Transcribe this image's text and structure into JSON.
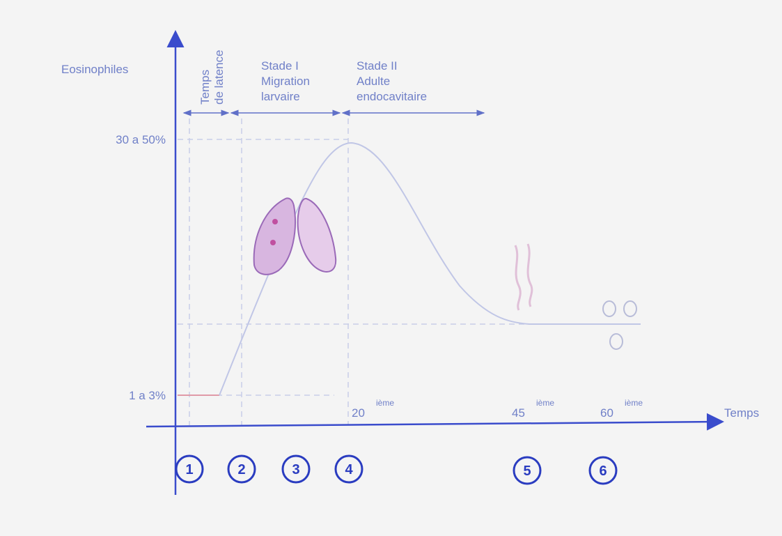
{
  "y_axis_label": "Eosinophiles",
  "x_axis_label": "Temps",
  "phases": [
    {
      "lines": [
        "Temps",
        "de latence"
      ]
    },
    {
      "lines": [
        "Stade I",
        "Migration",
        "larvaire"
      ]
    },
    {
      "lines": [
        "Stade II",
        "Adulte",
        "endocavitaire"
      ]
    }
  ],
  "levels": [
    "30 a 50%",
    "1 a 3%"
  ],
  "days": [
    {
      "number": "20",
      "suffix": "ième"
    },
    {
      "number": "45",
      "suffix": "ième"
    },
    {
      "number": "60",
      "suffix": "ième"
    }
  ],
  "markers": [
    "1",
    "2",
    "3",
    "4",
    "5",
    "6"
  ]
}
